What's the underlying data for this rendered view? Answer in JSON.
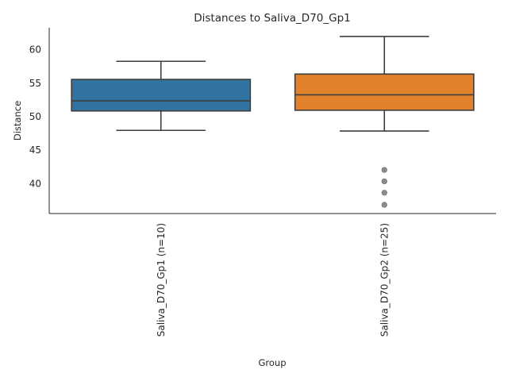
{
  "chart_data": {
    "type": "box",
    "title": "Distances to Saliva_D70_Gp1",
    "xlabel": "Group",
    "ylabel": "Distance",
    "ylim": [
      35.5,
      63.2
    ],
    "yticks": [
      40,
      45,
      50,
      55,
      60
    ],
    "grid": false,
    "categories": [
      "Saliva_D70_Gp1 (n=10)",
      "Saliva_D70_Gp2 (n=25)"
    ],
    "boxes": [
      {
        "whisker_low": 47.9,
        "q1": 50.8,
        "median": 52.3,
        "q3": 55.5,
        "whisker_high": 58.2,
        "outliers": [],
        "color": "#3274a1"
      },
      {
        "whisker_low": 47.8,
        "q1": 50.9,
        "median": 53.2,
        "q3": 56.3,
        "whisker_high": 61.9,
        "outliers": [
          42.0,
          40.3,
          38.6,
          36.8
        ],
        "color": "#e1812c"
      }
    ],
    "line_color": "#3d3d3d",
    "outlier_color": "#8c8c8c"
  }
}
